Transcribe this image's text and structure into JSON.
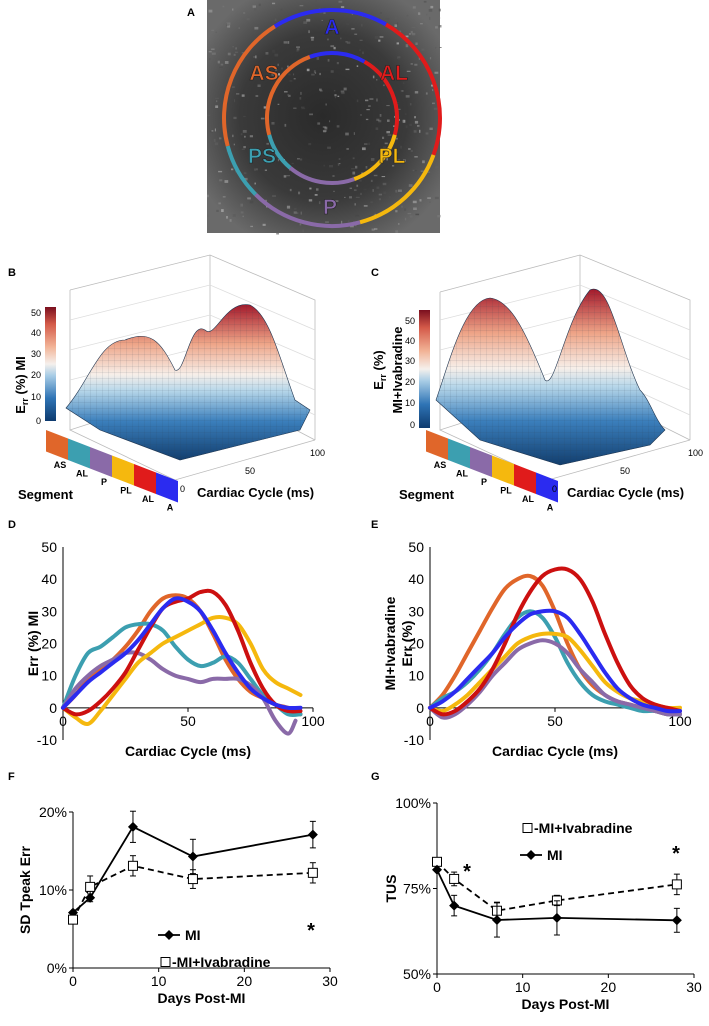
{
  "panel_letters": {
    "a": "A",
    "b": "B",
    "c": "C",
    "d": "D",
    "e": "E",
    "f": "F",
    "g": "G"
  },
  "panel_a": {
    "outer_segments": [
      {
        "label": "A",
        "color": "#2b2bf0"
      },
      {
        "label": "AL",
        "color": "#e01b1b"
      },
      {
        "label": "PL",
        "color": "#f5b80e"
      },
      {
        "label": "P",
        "color": "#8a6aa8"
      },
      {
        "label": "PS",
        "color": "#3c9fb0"
      },
      {
        "label": "AS",
        "color": "#e0662a"
      }
    ]
  },
  "panel_b": {
    "zlabel_main": "E",
    "zlabel_sub": "rr",
    "zlabel_rest": " (%) MI",
    "colorbar_ticks": [
      "50",
      "40",
      "30",
      "20",
      "10",
      "0"
    ],
    "segment_title": "Segment",
    "segment_labels": [
      "AS",
      "AL",
      "P",
      "PL",
      "AL",
      "A"
    ],
    "segment_colors": [
      "#e0662a",
      "#3c9fb0",
      "#8a6aa8",
      "#f5b80e",
      "#e01b1b",
      "#2b2bf0"
    ],
    "x_title": "Cardiac Cycle (ms)",
    "x_ticks": [
      "0",
      "50",
      "100"
    ]
  },
  "panel_c": {
    "zlabel_main": "E",
    "zlabel_sub": "rr",
    "zlabel_rest": " (%)",
    "zlabel_line2": "MI+Ivabradine",
    "colorbar_ticks": [
      "50",
      "40",
      "30",
      "20",
      "10",
      "0"
    ],
    "segment_title": "Segment",
    "segment_labels": [
      "AS",
      "AL",
      "P",
      "PL",
      "AL",
      "A"
    ],
    "segment_colors": [
      "#e0662a",
      "#3c9fb0",
      "#8a6aa8",
      "#f5b80e",
      "#e01b1b",
      "#2b2bf0"
    ],
    "x_title": "Cardiac Cycle (ms)",
    "x_ticks": [
      "0",
      "50",
      "100"
    ]
  },
  "chart_data": [
    {
      "panel": "D",
      "type": "line",
      "xlabel": "Cardiac Cycle (ms)",
      "ylabel": "Err (%) MI",
      "xlim": [
        0,
        100
      ],
      "ylim": [
        -10,
        50
      ],
      "x_ticks": [
        "0",
        "50",
        "100"
      ],
      "y_ticks": [
        "-10",
        "0",
        "10",
        "20",
        "30",
        "40",
        "50"
      ],
      "series": [
        {
          "color": "#e0662a",
          "x": [
            0,
            5,
            10,
            15,
            20,
            25,
            30,
            35,
            40,
            45,
            50,
            55,
            60,
            65,
            70,
            75,
            80,
            85,
            90,
            95
          ],
          "y": [
            0,
            4,
            9,
            12,
            15,
            19,
            24,
            30,
            34,
            35,
            34,
            30,
            23,
            15,
            9,
            5,
            3,
            1,
            0,
            -2
          ]
        },
        {
          "color": "#3c9fb0",
          "x": [
            0,
            5,
            10,
            15,
            20,
            25,
            30,
            35,
            40,
            45,
            50,
            55,
            60,
            65,
            70,
            75,
            80,
            85,
            90,
            95
          ],
          "y": [
            0,
            10,
            17,
            19,
            22,
            25,
            26,
            26,
            24,
            19,
            15,
            13,
            14,
            16,
            14,
            9,
            4,
            1,
            -2,
            -2
          ]
        },
        {
          "color": "#8a6aa8",
          "x": [
            0,
            5,
            10,
            15,
            20,
            25,
            30,
            35,
            40,
            45,
            50,
            55,
            60,
            65,
            70,
            75,
            80,
            85,
            90,
            93
          ],
          "y": [
            0,
            6,
            10,
            13,
            15,
            17,
            17,
            15,
            12,
            10,
            9,
            8,
            9,
            9,
            9,
            7,
            3,
            -4,
            -8,
            -4
          ]
        },
        {
          "color": "#f5b80e",
          "x": [
            0,
            5,
            10,
            15,
            20,
            25,
            30,
            35,
            40,
            45,
            50,
            55,
            60,
            65,
            70,
            75,
            80,
            85,
            90,
            95
          ],
          "y": [
            0,
            -3,
            -5,
            -1,
            4,
            9,
            14,
            17,
            20,
            22,
            24,
            26,
            28,
            28,
            26,
            20,
            12,
            8,
            6,
            4
          ]
        },
        {
          "color": "#cc1010",
          "x": [
            0,
            5,
            10,
            15,
            20,
            25,
            30,
            35,
            40,
            45,
            50,
            55,
            60,
            65,
            70,
            75,
            80,
            85,
            90,
            95
          ],
          "y": [
            0,
            -2,
            -1,
            2,
            6,
            11,
            18,
            25,
            31,
            33,
            34,
            36,
            36,
            32,
            24,
            14,
            6,
            1,
            -1,
            -1
          ]
        },
        {
          "color": "#2b2bf0",
          "x": [
            0,
            5,
            10,
            15,
            20,
            25,
            30,
            35,
            40,
            45,
            50,
            55,
            60,
            65,
            70,
            75,
            80,
            85,
            90,
            95
          ],
          "y": [
            0,
            4,
            8,
            11,
            14,
            17,
            21,
            26,
            31,
            34,
            33,
            30,
            24,
            17,
            11,
            6,
            3,
            1,
            0,
            0
          ]
        }
      ]
    },
    {
      "panel": "E",
      "type": "line",
      "xlabel": "Cardiac Cycle (ms)",
      "ylabel": "Err (%)",
      "ylabel_line2": "MI+Ivabradine",
      "xlim": [
        0,
        100
      ],
      "ylim": [
        -10,
        50
      ],
      "x_ticks": [
        "0",
        "50",
        "100"
      ],
      "y_ticks": [
        "-10",
        "0",
        "10",
        "20",
        "30",
        "40",
        "50"
      ],
      "series": [
        {
          "color": "#e0662a",
          "x": [
            0,
            5,
            10,
            15,
            20,
            25,
            30,
            35,
            40,
            45,
            50,
            55,
            60,
            65,
            70,
            75,
            80,
            85,
            90,
            95,
            100
          ],
          "y": [
            0,
            4,
            10,
            17,
            24,
            31,
            37,
            40,
            41,
            38,
            30,
            20,
            12,
            7,
            4,
            2,
            1,
            0,
            -1,
            -2,
            -2
          ]
        },
        {
          "color": "#3c9fb0",
          "x": [
            0,
            5,
            10,
            15,
            20,
            25,
            30,
            35,
            40,
            45,
            50,
            55,
            60,
            65,
            70,
            75,
            80,
            85,
            90,
            95,
            100
          ],
          "y": [
            0,
            3,
            5,
            8,
            12,
            17,
            23,
            28,
            30,
            28,
            22,
            14,
            8,
            4,
            2,
            1,
            0,
            -1,
            -1,
            -2,
            -2
          ]
        },
        {
          "color": "#8a6aa8",
          "x": [
            0,
            5,
            10,
            15,
            20,
            25,
            30,
            35,
            40,
            45,
            50,
            55,
            60,
            65,
            70,
            75,
            80,
            85,
            90,
            95,
            100
          ],
          "y": [
            0,
            -3,
            -2,
            1,
            5,
            10,
            14,
            18,
            20,
            21,
            20,
            17,
            12,
            8,
            4,
            2,
            1,
            0,
            -1,
            -2,
            -2
          ]
        },
        {
          "color": "#f5b80e",
          "x": [
            0,
            5,
            10,
            15,
            20,
            25,
            30,
            35,
            40,
            45,
            50,
            55,
            60,
            65,
            70,
            75,
            80,
            85,
            90,
            95,
            100
          ],
          "y": [
            0,
            -1,
            1,
            4,
            8,
            12,
            16,
            20,
            22,
            23,
            23,
            22,
            18,
            13,
            8,
            5,
            3,
            2,
            1,
            0,
            0
          ]
        },
        {
          "color": "#cc1010",
          "x": [
            0,
            5,
            10,
            15,
            20,
            25,
            30,
            35,
            40,
            45,
            50,
            55,
            60,
            65,
            70,
            75,
            80,
            85,
            90,
            95,
            100
          ],
          "y": [
            0,
            -2,
            -1,
            2,
            6,
            12,
            20,
            29,
            36,
            41,
            43,
            43,
            40,
            33,
            23,
            14,
            7,
            3,
            1,
            0,
            -1
          ]
        },
        {
          "color": "#2b2bf0",
          "x": [
            0,
            5,
            10,
            15,
            20,
            25,
            30,
            35,
            40,
            45,
            50,
            55,
            60,
            65,
            70,
            75,
            80,
            85,
            90,
            95,
            100
          ],
          "y": [
            0,
            2,
            5,
            9,
            13,
            17,
            22,
            26,
            29,
            30,
            30,
            28,
            23,
            17,
            11,
            6,
            3,
            1,
            0,
            -1,
            -1
          ]
        }
      ]
    },
    {
      "panel": "F",
      "type": "line",
      "xlabel": "Days Post-MI",
      "ylabel": "SD Tpeak Err",
      "xlim": [
        0,
        30
      ],
      "ylim": [
        0,
        20
      ],
      "x_ticks": [
        "0",
        "10",
        "20",
        "30"
      ],
      "y_ticks": [
        "0%",
        "10%",
        "20%"
      ],
      "legend": "bottom-right",
      "annotations": [
        "*"
      ],
      "series": [
        {
          "name": "MI",
          "style": "solid",
          "marker": "diamond",
          "x": [
            0,
            2,
            7,
            14,
            28
          ],
          "y": [
            7.1,
            9.0,
            18.1,
            14.3,
            17.1
          ],
          "err": [
            0,
            0.5,
            2.0,
            2.2,
            1.7
          ]
        },
        {
          "name": "-MI+Ivabradine",
          "style": "dashed",
          "marker": "square-open",
          "x": [
            0,
            2,
            7,
            14,
            28
          ],
          "y": [
            6.2,
            10.4,
            13.1,
            11.4,
            12.2
          ],
          "err": [
            0,
            1.4,
            1.3,
            1.2,
            1.3
          ]
        }
      ]
    },
    {
      "panel": "G",
      "type": "line",
      "xlabel": "Days Post-MI",
      "ylabel": "TUS",
      "xlim": [
        0,
        30
      ],
      "ylim": [
        50,
        100
      ],
      "x_ticks": [
        "0",
        "10",
        "20",
        "30"
      ],
      "y_ticks": [
        "50%",
        "75%",
        "100%"
      ],
      "legend": "top-right",
      "annotations": [
        "*",
        "*"
      ],
      "series": [
        {
          "name": "-MI+Ivabradine",
          "style": "dashed",
          "marker": "square-open",
          "x": [
            0,
            2,
            7,
            14,
            28
          ],
          "y": [
            82.8,
            77.8,
            68.5,
            71.5,
            76.2
          ],
          "err": [
            0,
            2,
            2.5,
            1.5,
            3
          ]
        },
        {
          "name": "MI",
          "style": "solid",
          "marker": "diamond",
          "x": [
            0,
            2,
            7,
            14,
            28
          ],
          "y": [
            80.5,
            70,
            65.8,
            66.4,
            65.7
          ],
          "err": [
            0,
            3,
            5,
            5,
            3.5
          ]
        }
      ]
    }
  ]
}
